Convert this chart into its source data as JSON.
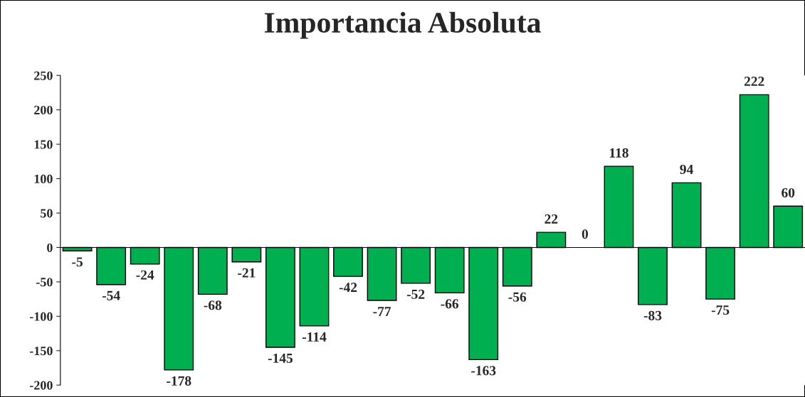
{
  "chart_data": {
    "type": "bar",
    "title": "Importancia Absoluta",
    "categories": [
      null,
      null,
      null,
      null,
      null,
      null,
      null,
      null,
      null,
      null,
      null,
      null,
      null,
      null,
      null,
      null,
      null,
      null,
      null,
      null,
      null,
      null
    ],
    "values": [
      -5,
      -54,
      -24,
      -178,
      -68,
      -21,
      -145,
      -114,
      -42,
      -77,
      -52,
      -66,
      -163,
      -56,
      22,
      0,
      118,
      -83,
      94,
      -75,
      222,
      60
    ],
    "color": "#00b050",
    "ylim": [
      -200,
      250
    ],
    "yticks": [
      -200,
      -150,
      -100,
      -50,
      0,
      50,
      100,
      150,
      200,
      250
    ],
    "tick_labels": "y",
    "data_labels": true
  }
}
